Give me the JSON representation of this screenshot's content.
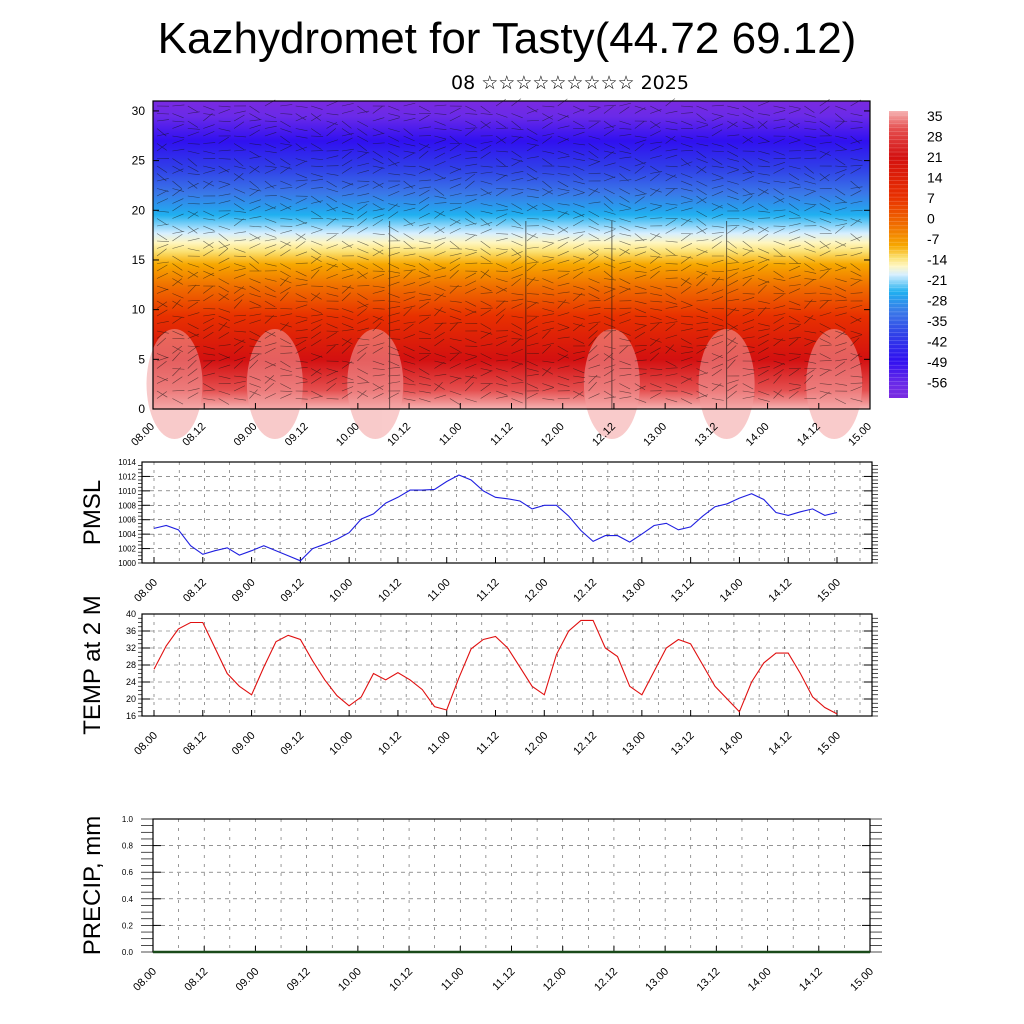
{
  "title": "Kazhydromet for Tasty(44.72 69.12)",
  "subtitle": "08 ☆☆☆☆☆☆☆☆☆ 2025",
  "colors": {
    "pmsl_line": "#1f1fe0",
    "temp_line": "#e01010",
    "precip_line": "#1a4a1a"
  },
  "colorbar": {
    "labels": [
      "35",
      "28",
      "21",
      "14",
      "7",
      "0",
      "-7",
      "-14",
      "-21",
      "-28",
      "-35",
      "-42",
      "-49",
      "-56"
    ]
  },
  "chart_data": [
    {
      "type": "heatmap",
      "name": "cross_section",
      "x_ticks": [
        "08.00",
        "08.12",
        "09.00",
        "09.12",
        "10.00",
        "10.12",
        "11.00",
        "11.12",
        "12.00",
        "12.12",
        "13.00",
        "13.12",
        "14.00",
        "14.12",
        "15.00"
      ],
      "y_ticks": [
        "0",
        "5",
        "10",
        "15",
        "20",
        "25",
        "30"
      ],
      "ylim": [
        0,
        31
      ],
      "value_range": [
        -56,
        35
      ],
      "color_levels": [
        "#f6b3b3",
        "#e55050",
        "#d31010",
        "#e83000",
        "#f07000",
        "#f7a800",
        "#fbe070",
        "#fff6c0",
        "#d7efff",
        "#20b0f0",
        "#3a78e8",
        "#3040e8",
        "#3010f0",
        "#7a2ae0"
      ]
    },
    {
      "type": "line",
      "name": "PMSL",
      "ylabel": "PMSL",
      "ylim": [
        1000,
        1014
      ],
      "y_ticks": [
        "1000",
        "1002",
        "1004",
        "1006",
        "1008",
        "1010",
        "1012",
        "1014"
      ],
      "x_ticks": [
        "08.00",
        "08.12",
        "09.00",
        "09.12",
        "10.00",
        "10.12",
        "11.00",
        "11.12",
        "12.00",
        "12.12",
        "13.00",
        "13.12",
        "14.00",
        "14.12",
        "15.00"
      ],
      "x": [
        0,
        3,
        6,
        9,
        12,
        15,
        18,
        21,
        24,
        27,
        30,
        33,
        36,
        39,
        42,
        45,
        48,
        51,
        54,
        57,
        60,
        63,
        66,
        69,
        72,
        75,
        78,
        81,
        84,
        87,
        90,
        93,
        96,
        99,
        102,
        105,
        108,
        111,
        114,
        117,
        120,
        123,
        126,
        129,
        132,
        135,
        138,
        141,
        144,
        147,
        150,
        153,
        156,
        159,
        162,
        165,
        168
      ],
      "values": [
        1004.8,
        1005.2,
        1004.6,
        1002.4,
        1001.2,
        1001.7,
        1002.1,
        1001.1,
        1001.7,
        1002.4,
        1001.7,
        1001.0,
        1000.3,
        1002.0,
        1002.6,
        1003.3,
        1004.2,
        1006.1,
        1006.8,
        1008.3,
        1009.1,
        1010.1,
        1010.1,
        1010.2,
        1011.3,
        1012.2,
        1011.5,
        1010.0,
        1009.1,
        1008.9,
        1008.6,
        1007.5,
        1008.0,
        1008.0,
        1006.5,
        1004.5,
        1003.0,
        1003.8,
        1003.8,
        1002.9,
        1004.0,
        1005.2,
        1005.5,
        1004.6,
        1005.0,
        1006.5,
        1007.8,
        1008.2,
        1009.0,
        1009.6,
        1008.8,
        1007.0,
        1006.6,
        1007.1,
        1007.5,
        1006.6,
        1007.0
      ]
    },
    {
      "type": "line",
      "name": "TEMP at 2 M",
      "ylabel": "TEMP at 2 M",
      "ylim": [
        16,
        40
      ],
      "y_ticks": [
        "16",
        "20",
        "24",
        "28",
        "32",
        "36",
        "40"
      ],
      "x_ticks": [
        "08.00",
        "08.12",
        "09.00",
        "09.12",
        "10.00",
        "10.12",
        "11.00",
        "11.12",
        "12.00",
        "12.12",
        "13.00",
        "13.12",
        "14.00",
        "14.12",
        "15.00"
      ],
      "x": [
        0,
        3,
        6,
        9,
        12,
        15,
        18,
        21,
        24,
        27,
        30,
        33,
        36,
        39,
        42,
        45,
        48,
        51,
        54,
        57,
        60,
        63,
        66,
        69,
        72,
        75,
        78,
        81,
        84,
        87,
        90,
        93,
        96,
        99,
        102,
        105,
        108,
        111,
        114,
        117,
        120,
        123,
        126,
        129,
        132,
        135,
        138,
        141,
        144,
        147,
        150,
        153,
        156,
        159,
        162,
        165,
        168
      ],
      "values": [
        27.0,
        32.5,
        36.5,
        38.0,
        38.0,
        32.0,
        26.0,
        23.0,
        21.0,
        27.5,
        33.5,
        35.0,
        34.0,
        29.0,
        24.5,
        20.8,
        18.4,
        20.5,
        26.0,
        24.5,
        26.2,
        24.5,
        22.2,
        18.2,
        17.4,
        25.0,
        31.8,
        34.0,
        34.7,
        32.0,
        27.5,
        23.0,
        21.0,
        30.5,
        36.0,
        38.5,
        38.5,
        32.0,
        30.0,
        23.0,
        21.0,
        26.5,
        32.0,
        34.0,
        33.0,
        28.0,
        23.0,
        20.0,
        17.0,
        24.0,
        28.5,
        30.8,
        30.8,
        26.0,
        20.5,
        18.0,
        16.5
      ]
    },
    {
      "type": "line",
      "name": "PRECIP, mm",
      "ylabel": "PRECIP, mm",
      "ylim": [
        0,
        1
      ],
      "y_ticks": [
        "0.0",
        "0.2",
        "0.4",
        "0.6",
        "0.8",
        "1.0"
      ],
      "x_ticks": [
        "08.00",
        "08.12",
        "09.00",
        "09.12",
        "10.00",
        "10.12",
        "11.00",
        "11.12",
        "12.00",
        "12.12",
        "13.00",
        "13.12",
        "14.00",
        "14.12",
        "15.00"
      ],
      "x": [
        0,
        168
      ],
      "values": [
        0,
        0
      ]
    }
  ]
}
